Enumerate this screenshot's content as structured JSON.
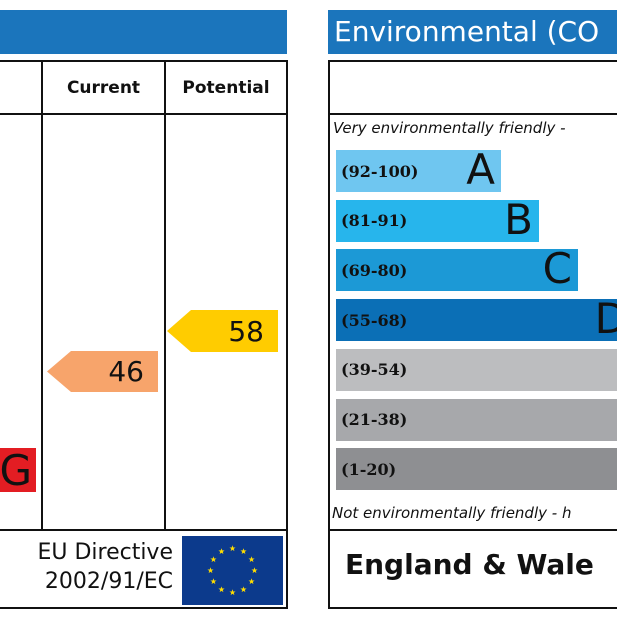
{
  "left_panel": {
    "columns": [
      "Current",
      "Potential"
    ],
    "footer_text_line1": "EU Directive",
    "footer_text_line2": "2002/91/EC",
    "partial_band_letter": "G",
    "partial_band_color": "#e31d23",
    "current_color": "#f7a46b",
    "potential_color": "#ffcc00"
  },
  "right_panel": {
    "title": "Environmental (CO",
    "top_note": "Very environmentally friendly - ",
    "bottom_note": "Not environmentally friendly - h",
    "footer": "England & Wale"
  },
  "chart_data": {
    "type": "bar",
    "rating_scale": [
      {
        "range": "(92-100)",
        "letter": "A",
        "color": "#6fc6f0"
      },
      {
        "range": "(81-91)",
        "letter": "B",
        "color": "#27b5ec"
      },
      {
        "range": "(69-80)",
        "letter": "C",
        "color": "#1c99d6"
      },
      {
        "range": "(55-68)",
        "letter": "D",
        "color": "#0b6fb6"
      },
      {
        "range": "(39-54)",
        "letter": "",
        "color": "#bcbdbf"
      },
      {
        "range": "(21-38)",
        "letter": "",
        "color": "#a7a8ab"
      },
      {
        "range": "(1-20)",
        "letter": "",
        "color": "#8e8f92"
      }
    ],
    "current": 46,
    "potential": 58
  }
}
